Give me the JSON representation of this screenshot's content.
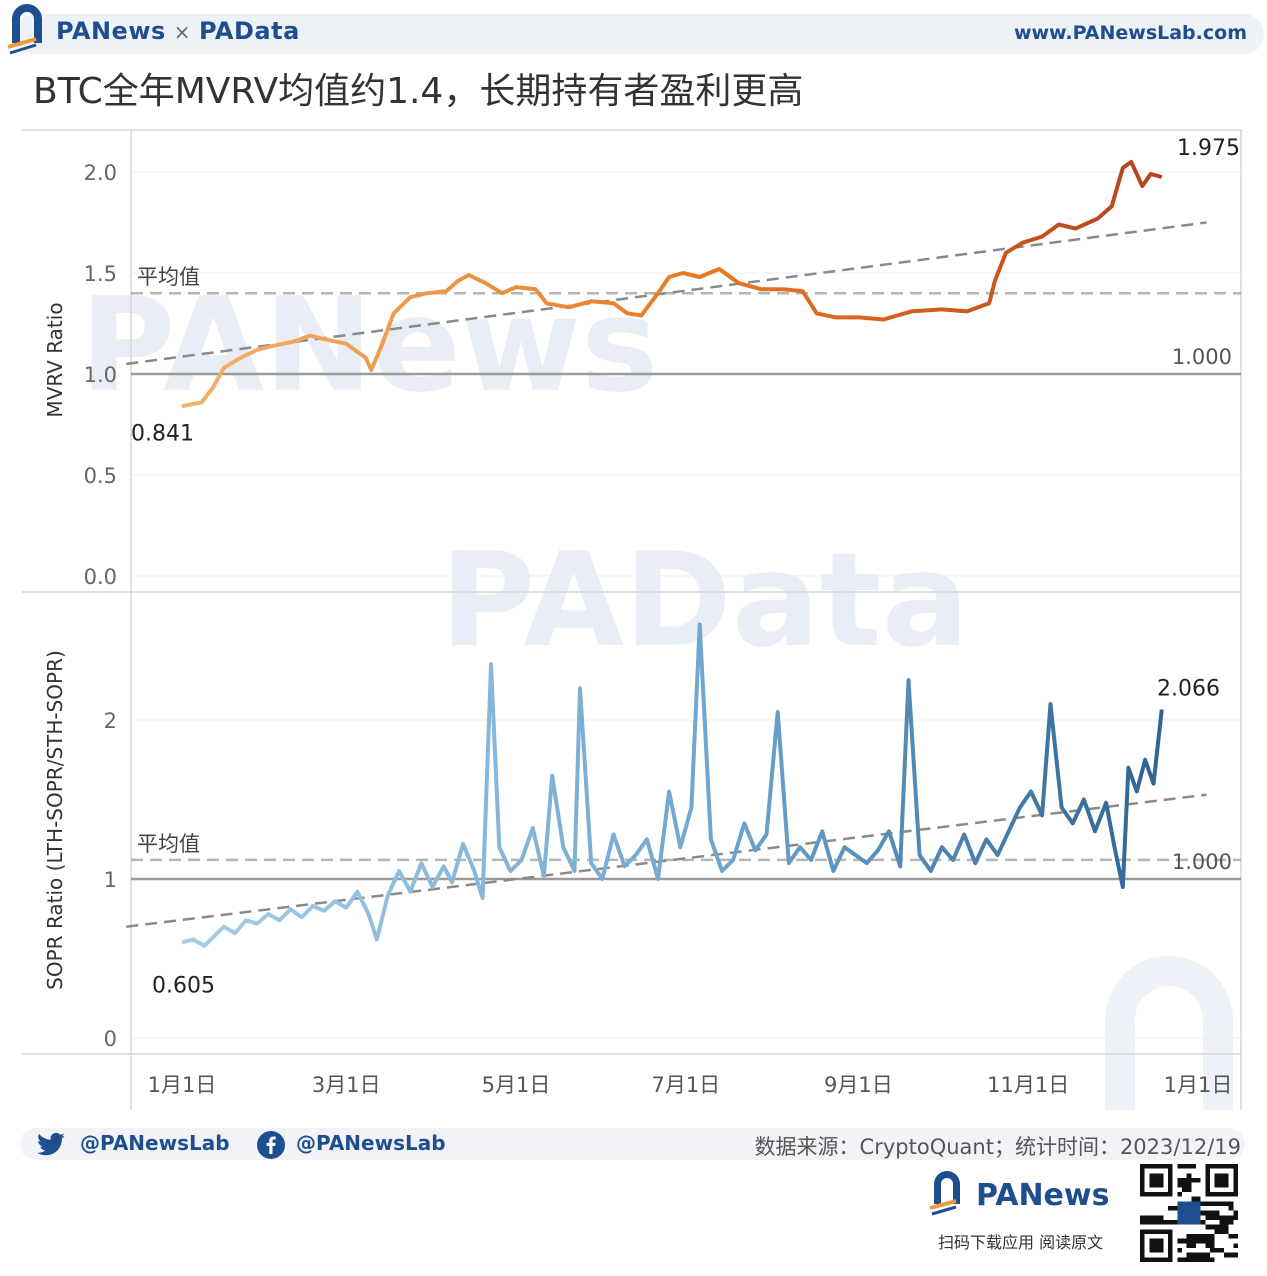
{
  "header": {
    "brand_left": "PANews",
    "brand_sep": "×",
    "brand_right": "PAData",
    "site": "www.PANewsLab.com"
  },
  "title": "BTC全年MVRV均值约1.4，长期持有者盈利更高",
  "watermarks": [
    "PANews",
    "PAData"
  ],
  "colors": {
    "mvrv_start": "#f2b36e",
    "mvrv_mid": "#e8761f",
    "mvrv_end": "#b5421e",
    "sopr_start": "#a7cde8",
    "sopr_mid": "#6ea5cf",
    "sopr_end": "#2f6494",
    "mean_line": "#b5b5b5",
    "ref_line": "#9a9a9a",
    "trend_line": "#8a8a8a",
    "brand": "#1f4e8f"
  },
  "chart_data": [
    {
      "type": "line",
      "ylabel": "MVRV Ratio",
      "ylim": [
        0,
        2.2
      ],
      "yticks": [
        "0.0",
        "0.5",
        "1.0",
        "1.5",
        "2.0"
      ],
      "xticks": [
        "1月1日",
        "3月1日",
        "5月1日",
        "7月1日",
        "9月1日",
        "11月1日",
        "1月1日"
      ],
      "x_range": [
        "2023-01-01",
        "2024-01-01"
      ],
      "mean_label": "平均值",
      "mean_value": 1.4,
      "ref_value": 1.0,
      "ref_label": "1.000",
      "start_label": "0.841",
      "end_label": "1.975",
      "trend": {
        "from": [
          "2022-12-12",
          1.05
        ],
        "to": [
          "2024-01-04",
          1.75
        ]
      },
      "series": [
        {
          "values": [
            [
              "2023-01-01",
              0.84
            ],
            [
              "2023-01-08",
              0.86
            ],
            [
              "2023-01-12",
              0.93
            ],
            [
              "2023-01-16",
              1.03
            ],
            [
              "2023-01-22",
              1.08
            ],
            [
              "2023-01-28",
              1.12
            ],
            [
              "2023-02-03",
              1.14
            ],
            [
              "2023-02-10",
              1.16
            ],
            [
              "2023-02-16",
              1.19
            ],
            [
              "2023-02-22",
              1.17
            ],
            [
              "2023-03-01",
              1.15
            ],
            [
              "2023-03-08",
              1.08
            ],
            [
              "2023-03-10",
              1.02
            ],
            [
              "2023-03-14",
              1.15
            ],
            [
              "2023-03-18",
              1.3
            ],
            [
              "2023-03-24",
              1.38
            ],
            [
              "2023-03-30",
              1.4
            ],
            [
              "2023-04-06",
              1.41
            ],
            [
              "2023-04-10",
              1.46
            ],
            [
              "2023-04-14",
              1.49
            ],
            [
              "2023-04-20",
              1.45
            ],
            [
              "2023-04-26",
              1.4
            ],
            [
              "2023-05-01",
              1.43
            ],
            [
              "2023-05-08",
              1.42
            ],
            [
              "2023-05-12",
              1.35
            ],
            [
              "2023-05-20",
              1.33
            ],
            [
              "2023-05-28",
              1.36
            ],
            [
              "2023-06-05",
              1.35
            ],
            [
              "2023-06-10",
              1.3
            ],
            [
              "2023-06-15",
              1.29
            ],
            [
              "2023-06-21",
              1.4
            ],
            [
              "2023-06-25",
              1.48
            ],
            [
              "2023-06-30",
              1.5
            ],
            [
              "2023-07-06",
              1.48
            ],
            [
              "2023-07-13",
              1.52
            ],
            [
              "2023-07-20",
              1.45
            ],
            [
              "2023-07-28",
              1.42
            ],
            [
              "2023-08-05",
              1.42
            ],
            [
              "2023-08-12",
              1.41
            ],
            [
              "2023-08-17",
              1.3
            ],
            [
              "2023-08-24",
              1.28
            ],
            [
              "2023-09-01",
              1.28
            ],
            [
              "2023-09-10",
              1.27
            ],
            [
              "2023-09-20",
              1.31
            ],
            [
              "2023-10-01",
              1.32
            ],
            [
              "2023-10-10",
              1.31
            ],
            [
              "2023-10-18",
              1.35
            ],
            [
              "2023-10-20",
              1.46
            ],
            [
              "2023-10-24",
              1.6
            ],
            [
              "2023-10-30",
              1.65
            ],
            [
              "2023-11-06",
              1.68
            ],
            [
              "2023-11-12",
              1.74
            ],
            [
              "2023-11-18",
              1.72
            ],
            [
              "2023-11-26",
              1.77
            ],
            [
              "2023-12-01",
              1.83
            ],
            [
              "2023-12-05",
              2.02
            ],
            [
              "2023-12-08",
              2.05
            ],
            [
              "2023-12-12",
              1.93
            ],
            [
              "2023-12-15",
              1.99
            ],
            [
              "2023-12-19",
              1.975
            ]
          ]
        }
      ]
    },
    {
      "type": "line",
      "ylabel": "SOPR Ratio (LTH-SOPR/STH-SOPR)",
      "ylim": [
        0,
        2.4
      ],
      "yticks": [
        "0",
        "1",
        "2"
      ],
      "xticks": [
        "1月1日",
        "3月1日",
        "5月1日",
        "7月1日",
        "9月1日",
        "11月1日",
        "1月1日"
      ],
      "x_range": [
        "2023-01-01",
        "2024-01-01"
      ],
      "mean_label": "平均值",
      "mean_value": 1.12,
      "ref_value": 1.0,
      "ref_label": "1.000",
      "start_label": "0.605",
      "end_label": "2.066",
      "trend": {
        "from": [
          "2022-12-12",
          0.7
        ],
        "to": [
          "2024-01-04",
          1.53
        ]
      },
      "series": [
        {
          "values": [
            [
              "2023-01-01",
              0.6
            ],
            [
              "2023-01-05",
              0.62
            ],
            [
              "2023-01-09",
              0.58
            ],
            [
              "2023-01-12",
              0.63
            ],
            [
              "2023-01-16",
              0.7
            ],
            [
              "2023-01-20",
              0.66
            ],
            [
              "2023-01-24",
              0.74
            ],
            [
              "2023-01-28",
              0.72
            ],
            [
              "2023-02-01",
              0.78
            ],
            [
              "2023-02-05",
              0.74
            ],
            [
              "2023-02-09",
              0.81
            ],
            [
              "2023-02-13",
              0.76
            ],
            [
              "2023-02-17",
              0.83
            ],
            [
              "2023-02-21",
              0.8
            ],
            [
              "2023-02-25",
              0.86
            ],
            [
              "2023-03-01",
              0.82
            ],
            [
              "2023-03-05",
              0.92
            ],
            [
              "2023-03-09",
              0.78
            ],
            [
              "2023-03-12",
              0.62
            ],
            [
              "2023-03-16",
              0.9
            ],
            [
              "2023-03-20",
              1.05
            ],
            [
              "2023-03-24",
              0.92
            ],
            [
              "2023-03-28",
              1.1
            ],
            [
              "2023-04-01",
              0.95
            ],
            [
              "2023-04-05",
              1.08
            ],
            [
              "2023-04-08",
              0.98
            ],
            [
              "2023-04-12",
              1.22
            ],
            [
              "2023-04-16",
              1.05
            ],
            [
              "2023-04-19",
              0.88
            ],
            [
              "2023-04-22",
              2.35
            ],
            [
              "2023-04-25",
              1.2
            ],
            [
              "2023-04-29",
              1.05
            ],
            [
              "2023-05-03",
              1.12
            ],
            [
              "2023-05-07",
              1.32
            ],
            [
              "2023-05-11",
              1.02
            ],
            [
              "2023-05-14",
              1.65
            ],
            [
              "2023-05-18",
              1.2
            ],
            [
              "2023-05-22",
              1.05
            ],
            [
              "2023-05-24",
              2.2
            ],
            [
              "2023-05-28",
              1.1
            ],
            [
              "2023-06-01",
              1.0
            ],
            [
              "2023-06-05",
              1.28
            ],
            [
              "2023-06-09",
              1.08
            ],
            [
              "2023-06-13",
              1.15
            ],
            [
              "2023-06-17",
              1.25
            ],
            [
              "2023-06-21",
              1.0
            ],
            [
              "2023-06-25",
              1.55
            ],
            [
              "2023-06-29",
              1.2
            ],
            [
              "2023-07-03",
              1.45
            ],
            [
              "2023-07-06",
              2.6
            ],
            [
              "2023-07-10",
              1.25
            ],
            [
              "2023-07-14",
              1.05
            ],
            [
              "2023-07-18",
              1.12
            ],
            [
              "2023-07-22",
              1.35
            ],
            [
              "2023-07-26",
              1.18
            ],
            [
              "2023-07-30",
              1.28
            ],
            [
              "2023-08-03",
              2.05
            ],
            [
              "2023-08-07",
              1.1
            ],
            [
              "2023-08-11",
              1.2
            ],
            [
              "2023-08-15",
              1.12
            ],
            [
              "2023-08-19",
              1.3
            ],
            [
              "2023-08-23",
              1.05
            ],
            [
              "2023-08-27",
              1.2
            ],
            [
              "2023-08-31",
              1.15
            ],
            [
              "2023-09-04",
              1.1
            ],
            [
              "2023-09-08",
              1.18
            ],
            [
              "2023-09-12",
              1.3
            ],
            [
              "2023-09-16",
              1.08
            ],
            [
              "2023-09-19",
              2.25
            ],
            [
              "2023-09-23",
              1.15
            ],
            [
              "2023-09-27",
              1.05
            ],
            [
              "2023-10-01",
              1.2
            ],
            [
              "2023-10-05",
              1.12
            ],
            [
              "2023-10-09",
              1.28
            ],
            [
              "2023-10-13",
              1.1
            ],
            [
              "2023-10-17",
              1.25
            ],
            [
              "2023-10-21",
              1.15
            ],
            [
              "2023-10-25",
              1.3
            ],
            [
              "2023-10-29",
              1.45
            ],
            [
              "2023-11-02",
              1.55
            ],
            [
              "2023-11-06",
              1.4
            ],
            [
              "2023-11-09",
              2.1
            ],
            [
              "2023-11-13",
              1.45
            ],
            [
              "2023-11-17",
              1.35
            ],
            [
              "2023-11-21",
              1.5
            ],
            [
              "2023-11-25",
              1.3
            ],
            [
              "2023-11-29",
              1.48
            ],
            [
              "2023-12-02",
              1.2
            ],
            [
              "2023-12-05",
              0.95
            ],
            [
              "2023-12-07",
              1.7
            ],
            [
              "2023-12-10",
              1.55
            ],
            [
              "2023-12-13",
              1.75
            ],
            [
              "2023-12-16",
              1.6
            ],
            [
              "2023-12-19",
              2.066
            ]
          ]
        }
      ]
    }
  ],
  "footer": {
    "twitter": "@PANewsLab",
    "facebook": "@PANewsLab",
    "source": "数据来源：CryptoQuant；统计时间：2023/12/19",
    "app_brand": "PANews",
    "app_sub": "扫码下载应用  阅读原文"
  }
}
